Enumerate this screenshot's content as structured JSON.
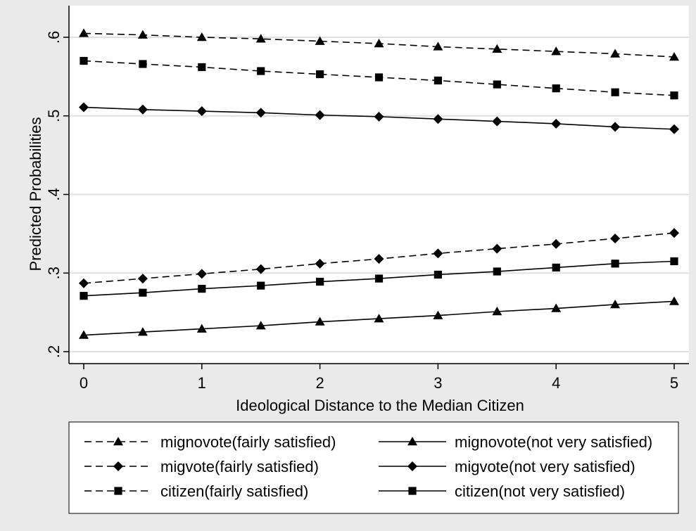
{
  "chart_data": {
    "type": "line",
    "title": "",
    "xlabel": "Ideological Distance to the Median Citizen",
    "ylabel": "Predicted Probabilities",
    "xlim": [
      0,
      5
    ],
    "ylim": [
      0.18,
      0.62
    ],
    "grid": true,
    "legend_position": "bottom",
    "x": [
      0,
      0.5,
      1,
      1.5,
      2,
      2.5,
      3,
      3.5,
      4,
      4.5,
      5
    ],
    "x_ticks": [
      "0",
      "1",
      "2",
      "3",
      "4",
      "5"
    ],
    "y_ticks": [
      ".2",
      ".3",
      ".4",
      ".5",
      ".6"
    ],
    "series": [
      {
        "name": "mignovote(fairly satisfied)",
        "marker": "triangle",
        "line_style": "dashed",
        "values": [
          0.605,
          0.603,
          0.6,
          0.598,
          0.595,
          0.592,
          0.588,
          0.585,
          0.582,
          0.579,
          0.575
        ]
      },
      {
        "name": "mignovote(not very satisfied)",
        "marker": "triangle",
        "line_style": "solid",
        "values": [
          0.221,
          0.225,
          0.229,
          0.233,
          0.238,
          0.242,
          0.246,
          0.251,
          0.255,
          0.26,
          0.264
        ]
      },
      {
        "name": "migvote(fairly satisfied)",
        "marker": "diamond",
        "line_style": "dashed",
        "values": [
          0.287,
          0.293,
          0.299,
          0.305,
          0.312,
          0.318,
          0.325,
          0.331,
          0.337,
          0.344,
          0.351
        ]
      },
      {
        "name": "migvote(not very satisfied)",
        "marker": "diamond",
        "line_style": "solid",
        "values": [
          0.511,
          0.508,
          0.506,
          0.504,
          0.501,
          0.499,
          0.496,
          0.493,
          0.49,
          0.486,
          0.483
        ]
      },
      {
        "name": "citizen(fairly satisfied)",
        "marker": "square",
        "line_style": "dashed",
        "values": [
          0.57,
          0.566,
          0.562,
          0.557,
          0.553,
          0.549,
          0.545,
          0.54,
          0.535,
          0.53,
          0.526
        ]
      },
      {
        "name": "citizen(not very satisfied)",
        "marker": "square",
        "line_style": "solid",
        "values": [
          0.271,
          0.275,
          0.28,
          0.284,
          0.289,
          0.293,
          0.298,
          0.302,
          0.307,
          0.312,
          0.315
        ]
      }
    ],
    "colors": {
      "background": "#eaeaea",
      "plot_area": "#ffffff",
      "grid": "#e0e0e0",
      "series": "#000000"
    }
  }
}
